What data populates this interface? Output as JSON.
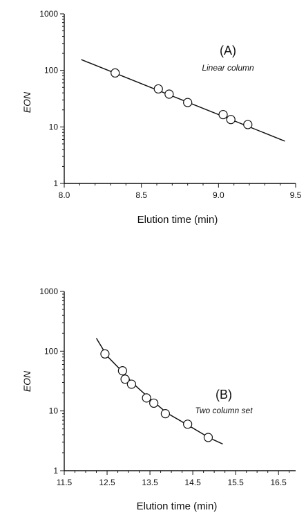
{
  "chart_data": [
    {
      "type": "scatter",
      "panel_label": "(A)",
      "annotation": "Linear column",
      "xlabel": "Elution time (min)",
      "ylabel": "EON",
      "xlim": [
        8.0,
        9.5
      ],
      "ylim": [
        1,
        1000
      ],
      "y_scale": "log",
      "x_ticks": [
        "8.0",
        "8.5",
        "9.0",
        "9.5"
      ],
      "y_ticks": [
        "1",
        "10",
        "100",
        "1000"
      ],
      "points": [
        {
          "x": 8.33,
          "y": 90
        },
        {
          "x": 8.61,
          "y": 47
        },
        {
          "x": 8.68,
          "y": 38
        },
        {
          "x": 8.8,
          "y": 27
        },
        {
          "x": 9.03,
          "y": 16.5
        },
        {
          "x": 9.08,
          "y": 13.5
        },
        {
          "x": 9.19,
          "y": 11
        }
      ],
      "fit": [
        {
          "x": 8.11,
          "y": 155
        },
        {
          "x": 9.43,
          "y": 5.6
        }
      ]
    },
    {
      "type": "scatter",
      "panel_label": "(B)",
      "annotation": "Two column set",
      "xlabel": "Elution time (min)",
      "ylabel": "EON",
      "xlim": [
        11.5,
        16.9
      ],
      "ylim": [
        1,
        1000
      ],
      "y_scale": "log",
      "x_ticks": [
        "11.5",
        "12.5",
        "13.5",
        "14.5",
        "15.5",
        "16.5"
      ],
      "y_ticks": [
        "1",
        "10",
        "100",
        "1000"
      ],
      "points": [
        {
          "x": 12.45,
          "y": 90
        },
        {
          "x": 12.86,
          "y": 47
        },
        {
          "x": 12.92,
          "y": 34
        },
        {
          "x": 13.07,
          "y": 28
        },
        {
          "x": 13.42,
          "y": 16.5
        },
        {
          "x": 13.59,
          "y": 13.5
        },
        {
          "x": 13.86,
          "y": 9
        },
        {
          "x": 14.38,
          "y": 6
        },
        {
          "x": 14.86,
          "y": 3.6
        }
      ],
      "fit": [
        {
          "x": 12.25,
          "y": 165
        },
        {
          "x": 12.5,
          "y": 83
        },
        {
          "x": 12.8,
          "y": 50
        },
        {
          "x": 13.1,
          "y": 29
        },
        {
          "x": 13.5,
          "y": 16
        },
        {
          "x": 13.9,
          "y": 9.2
        },
        {
          "x": 14.4,
          "y": 5.7
        },
        {
          "x": 14.9,
          "y": 3.5
        },
        {
          "x": 15.2,
          "y": 2.8
        }
      ]
    }
  ]
}
